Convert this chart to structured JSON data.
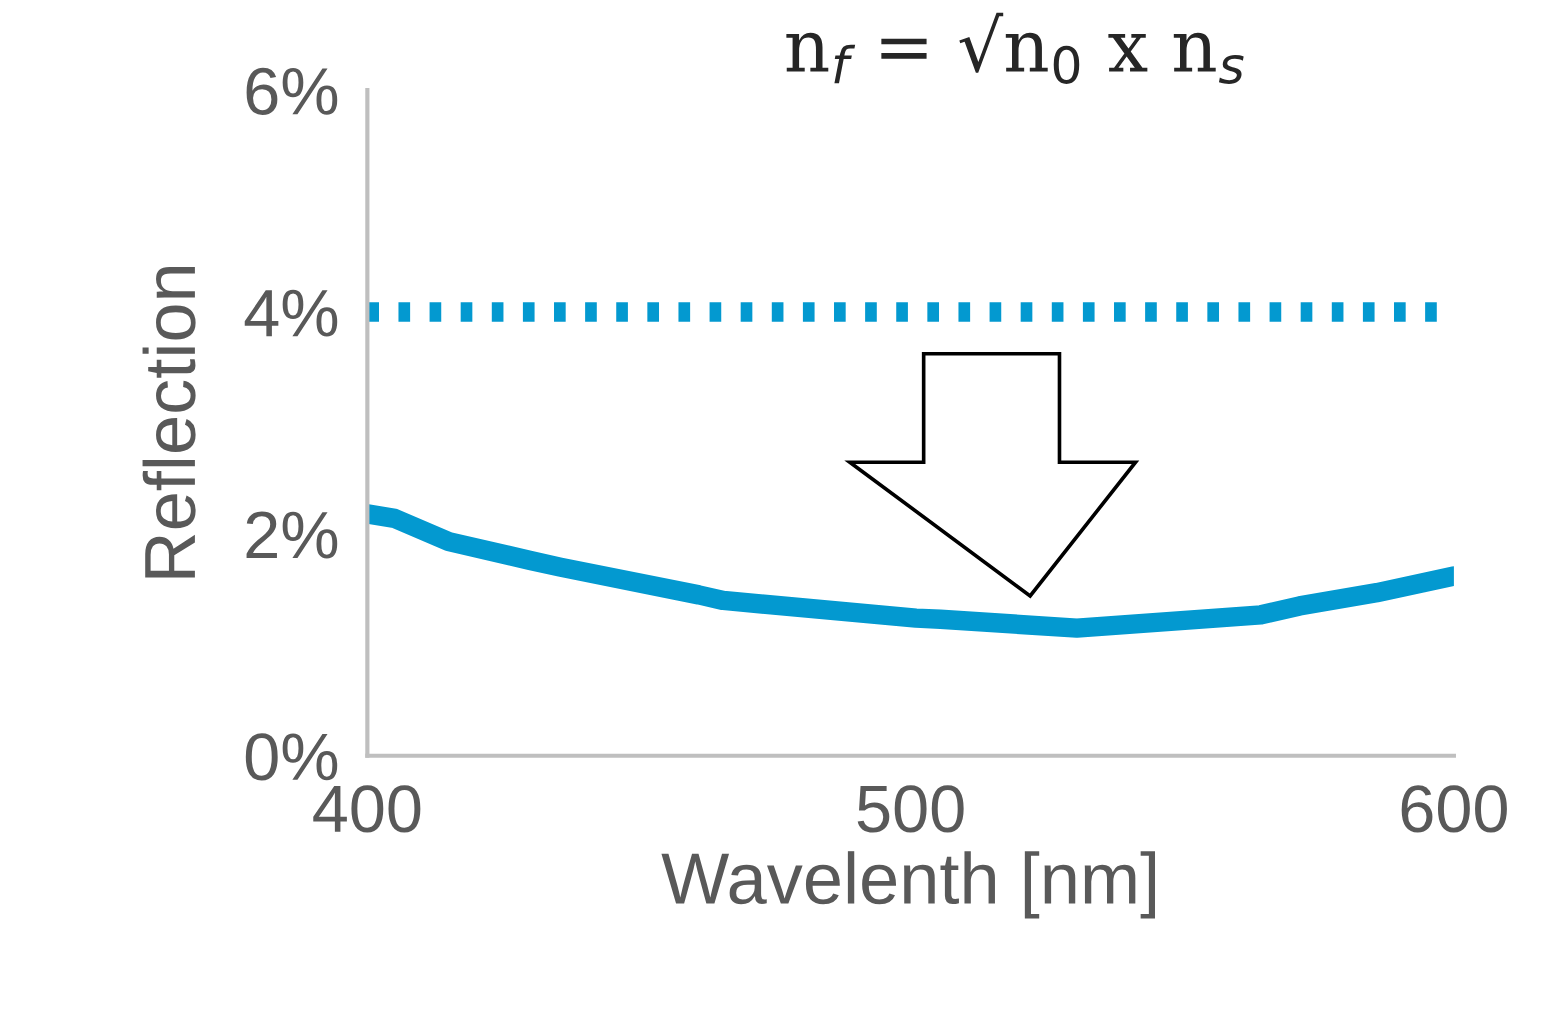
{
  "chart_data": {
    "type": "line",
    "xlabel": "Wavelenth [nm]",
    "ylabel": "Reflection",
    "annotations": [
      "n$_{f}$ = √n$_{0}$ x n$_{s}$"
    ],
    "series": [
      {
        "color": "#0399d0",
        "line_style": "dotted",
        "x": [
          400,
          600
        ],
        "values": [
          4.0,
          4.0
        ]
      },
      {
        "color": "#0399d0",
        "line_style": "solid",
        "x": [
          400,
          405,
          415,
          430,
          435.5,
          461,
          465.5,
          501,
          505.5,
          530.6,
          564.5,
          571.6,
          585.8,
          600
        ],
        "values": [
          2.18,
          2.14,
          1.93,
          1.76,
          1.7,
          1.45,
          1.4,
          1.24,
          1.23,
          1.15,
          1.27,
          1.35,
          1.47,
          1.62
        ]
      }
    ],
    "xlim": [
      400,
      600
    ],
    "xticks": [
      400,
      500,
      600
    ],
    "ylim": [
      0,
      6
    ],
    "yticks": [
      {
        "value": 0,
        "label": "0%"
      },
      {
        "value": 2,
        "label": "2%"
      },
      {
        "value": 4,
        "label": "4%"
      },
      {
        "value": 6,
        "label": "6%"
      }
    ],
    "grid": false,
    "legend": false,
    "marker": "none"
  }
}
